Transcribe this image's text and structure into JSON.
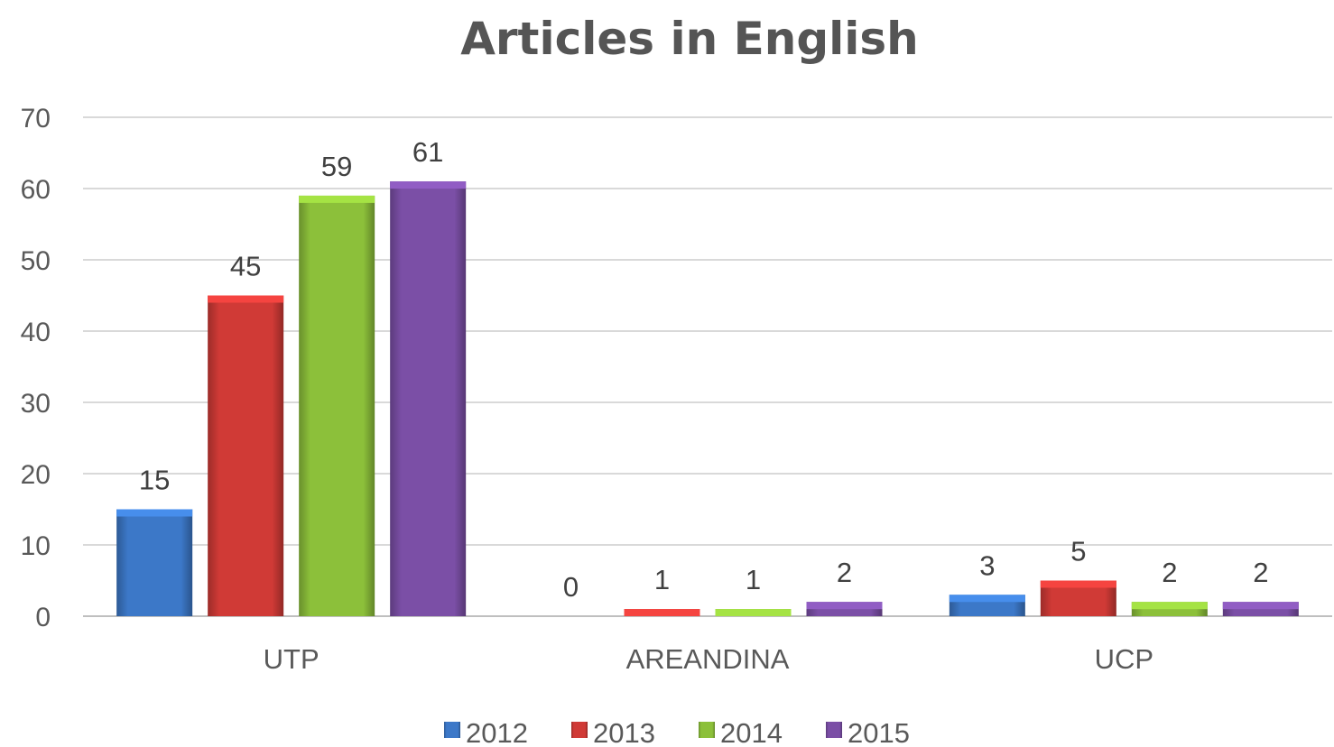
{
  "chart_data": {
    "type": "bar",
    "title": "Articles in English",
    "categories": [
      "UTP",
      "AREANDINA",
      "UCP"
    ],
    "series": [
      {
        "name": "2012",
        "values": [
          15,
          0,
          3
        ],
        "color": "#3c78c8"
      },
      {
        "name": "2013",
        "values": [
          45,
          1,
          5
        ],
        "color": "#d03a36"
      },
      {
        "name": "2014",
        "values": [
          59,
          1,
          2
        ],
        "color": "#8cc03a"
      },
      {
        "name": "2015",
        "values": [
          61,
          2,
          2
        ],
        "color": "#7b4fa6"
      }
    ],
    "ylim": [
      0,
      70
    ],
    "yticks": [
      0,
      10,
      20,
      30,
      40,
      50,
      60,
      70
    ],
    "grid": true,
    "legend": "bottom",
    "data_labels": true
  }
}
